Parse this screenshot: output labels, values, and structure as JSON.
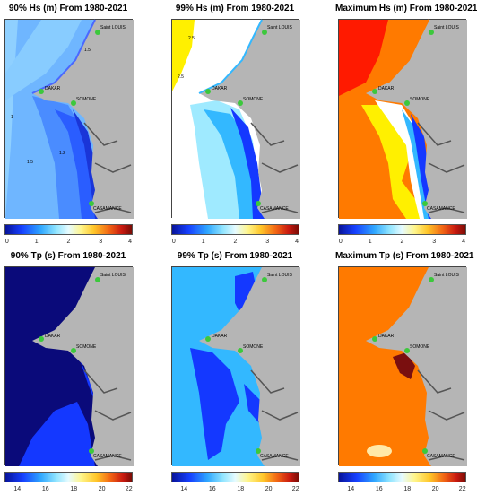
{
  "panels": [
    {
      "title": "90% Hs (m) From 1980-2021",
      "ticks": [
        "0",
        "1",
        "2",
        "3",
        "4"
      ]
    },
    {
      "title": "99% Hs (m) From 1980-2021",
      "ticks": [
        "0",
        "1",
        "2",
        "3",
        "4"
      ]
    },
    {
      "title": "Maximum Hs (m) From 1980-2021",
      "ticks": [
        "0",
        "1",
        "2",
        "3",
        "4"
      ]
    },
    {
      "title": "90% Tp (s) From 1980-2021",
      "ticks": [
        "14",
        "16",
        "18",
        "20",
        "22"
      ]
    },
    {
      "title": "99% Tp (s) From 1980-2021",
      "ticks": [
        "14",
        "16",
        "18",
        "20",
        "22"
      ]
    },
    {
      "title": "Maximum Tp (s) From 1980-2021",
      "ticks": [
        "14",
        "16",
        "18",
        "20",
        "22"
      ]
    }
  ],
  "places": {
    "saint_louis": "Saint LOUIS",
    "dakar": "DAKAR",
    "somone": "SOMONE",
    "casamance": "CASAMANCE"
  },
  "contours": {
    "c1": "1",
    "c15": "1.5",
    "c12": "1.2",
    "c25": "2.5"
  },
  "colors": {
    "land": "#b5b5b5",
    "deep_blue": "#0a0a7a",
    "blue": "#1438ff",
    "light_blue": "#33b8ff",
    "cyan": "#9feaff",
    "white": "#ffffff",
    "yellow": "#fff000",
    "orange": "#ff7a00",
    "red": "#ff1a00",
    "dark_red": "#7a0f0f",
    "marker": "#3cc83c"
  }
}
